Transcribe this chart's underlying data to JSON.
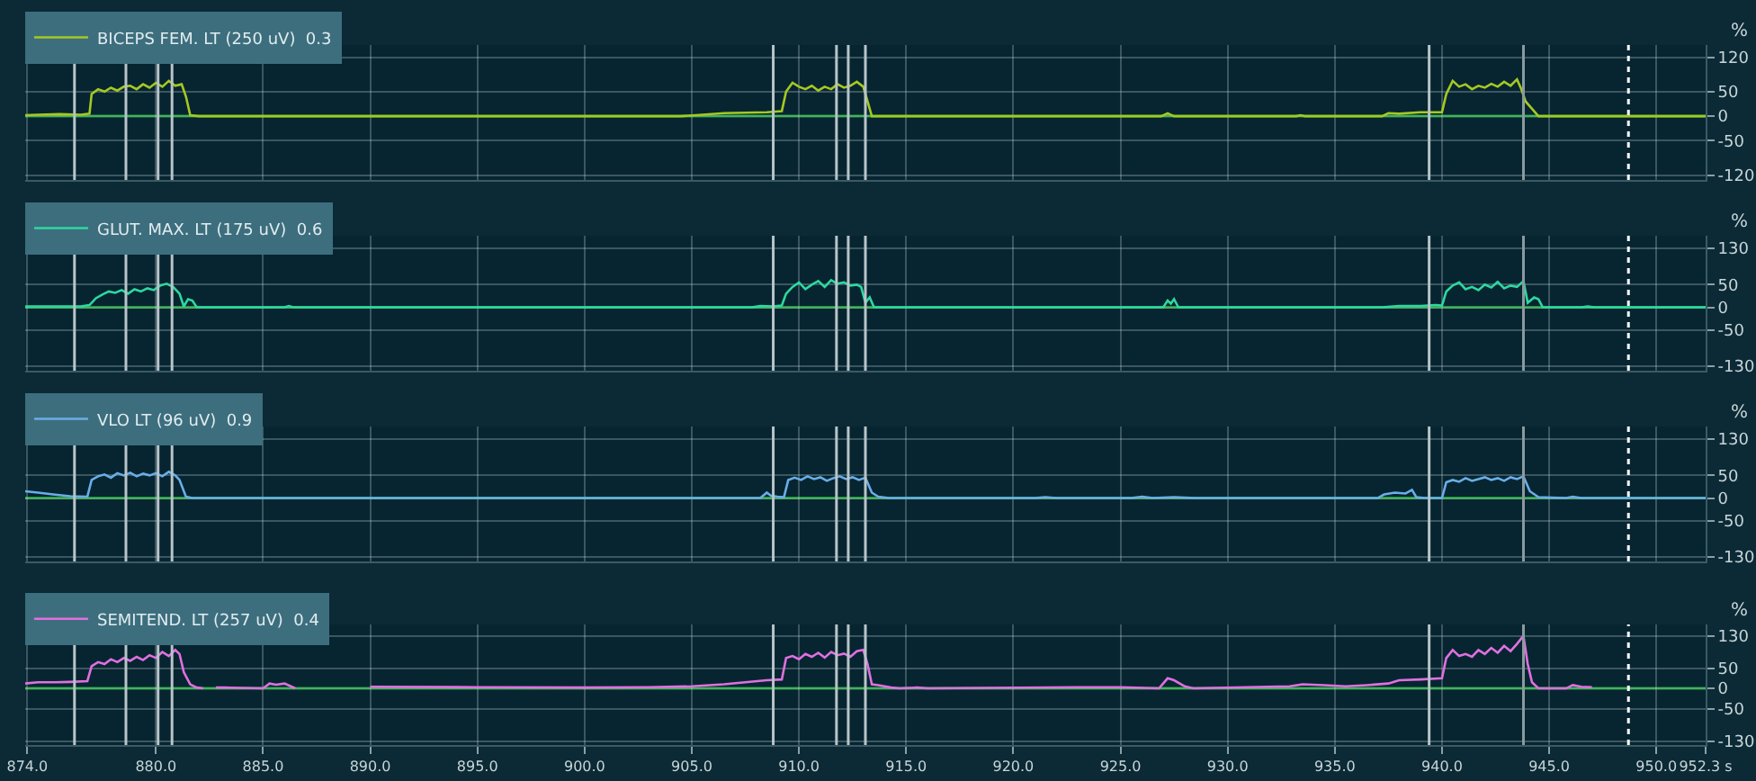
{
  "chart_data": [
    {
      "type": "line",
      "ylabel": "%",
      "xlim": [
        873.9,
        952.3
      ],
      "ylim": [
        -130,
        145
      ],
      "yticks": [
        120,
        50,
        0,
        -50,
        -120
      ],
      "xticks": [
        874,
        880,
        885,
        890,
        895,
        900,
        905,
        910,
        915,
        920,
        925,
        930,
        935,
        940,
        945,
        950,
        952.3
      ],
      "tick_labels": "y",
      "grid": true,
      "legend": "top left",
      "marker": "none",
      "line_style": "solid",
      "series": [
        {
          "name": "BICEPS FEM. LT (250 uV)  0.3",
          "color": "#a6c822",
          "x": [
            873.9,
            874.5,
            875.5,
            876.5,
            876.9,
            877.0,
            877.3,
            877.6,
            877.9,
            878.2,
            878.5,
            878.8,
            879.1,
            879.4,
            879.7,
            880.0,
            880.3,
            880.6,
            880.9,
            881.2,
            881.4,
            881.6,
            882,
            890,
            900,
            904.5,
            905.5,
            906.5,
            907.5,
            908.5,
            909.2,
            909.4,
            909.7,
            910.0,
            910.3,
            910.6,
            910.9,
            911.2,
            911.5,
            911.8,
            912.1,
            912.4,
            912.7,
            913.0,
            913.2,
            913.4,
            920,
            926.9,
            927.2,
            927.5,
            933.2,
            933.4,
            933.6,
            937.2,
            937.5,
            938,
            939,
            940.0,
            940.2,
            940.5,
            940.8,
            941.1,
            941.4,
            941.7,
            942.0,
            942.3,
            942.6,
            942.9,
            943.2,
            943.5,
            943.7,
            943.9,
            944.2,
            944.5,
            952.3
          ],
          "values": [
            2,
            3,
            4,
            3,
            5,
            45,
            55,
            50,
            58,
            52,
            60,
            62,
            55,
            65,
            58,
            68,
            60,
            72,
            62,
            65,
            40,
            2,
            0,
            0,
            0,
            0,
            3,
            6,
            7,
            8,
            10,
            50,
            68,
            60,
            55,
            62,
            52,
            60,
            55,
            65,
            58,
            62,
            70,
            60,
            30,
            0,
            0,
            0,
            6,
            0,
            0,
            2,
            0,
            0,
            6,
            5,
            8,
            8,
            45,
            72,
            60,
            65,
            55,
            62,
            58,
            66,
            60,
            70,
            62,
            75,
            55,
            30,
            15,
            0,
            0
          ]
        }
      ],
      "ref_lines": [
        {
          "axis": "y",
          "value": 0,
          "color": "#1f9a3a"
        },
        {
          "axis": "x",
          "value": 876.2,
          "color": "#b8c4c8"
        },
        {
          "axis": "x",
          "value": 878.6,
          "color": "#b8c4c8"
        },
        {
          "axis": "x",
          "value": 880.1,
          "color": "#b8c4c8"
        },
        {
          "axis": "x",
          "value": 880.75,
          "color": "#b8c4c8"
        },
        {
          "axis": "x",
          "value": 908.8,
          "color": "#b8c4c8"
        },
        {
          "axis": "x",
          "value": 911.75,
          "color": "#b8c4c8"
        },
        {
          "axis": "x",
          "value": 912.3,
          "color": "#b8c4c8"
        },
        {
          "axis": "x",
          "value": 913.1,
          "color": "#b8c4c8"
        },
        {
          "axis": "x",
          "value": 939.4,
          "color": "#b8c4c8"
        },
        {
          "axis": "x",
          "value": 943.8,
          "color": "#8a9a9e"
        },
        {
          "axis": "x",
          "value": 948.7,
          "color": "#ffffff",
          "line_style": "dotted"
        }
      ]
    },
    {
      "type": "line",
      "ylabel": "%",
      "xlim": [
        873.9,
        952.3
      ],
      "ylim": [
        -140,
        158
      ],
      "yticks": [
        130,
        50,
        0,
        -50,
        -130
      ],
      "xticks": [
        874,
        880,
        885,
        890,
        895,
        900,
        905,
        910,
        915,
        920,
        925,
        930,
        935,
        940,
        945,
        950,
        952.3
      ],
      "tick_labels": "y",
      "grid": true,
      "legend": "top left",
      "marker": "none",
      "line_style": "solid",
      "series": [
        {
          "name": "GLUT. MAX. LT (175 uV)  0.6",
          "color": "#2ed8a0",
          "x": [
            873.9,
            875,
            876.5,
            876.9,
            877.2,
            877.5,
            877.8,
            878.1,
            878.4,
            878.7,
            879.0,
            879.3,
            879.6,
            879.9,
            880.2,
            880.5,
            880.8,
            881.1,
            881.3,
            881.5,
            881.7,
            881.9,
            882.1,
            886.0,
            886.2,
            886.4,
            890,
            900,
            907.8,
            908.2,
            908.8,
            909.2,
            909.4,
            909.7,
            910.0,
            910.3,
            910.6,
            910.9,
            911.2,
            911.5,
            911.8,
            912.1,
            912.4,
            912.7,
            912.9,
            913.1,
            913.3,
            913.5,
            920,
            927.0,
            927.2,
            927.35,
            927.5,
            927.7,
            935,
            937.2,
            938,
            939,
            939.7,
            940.0,
            940.2,
            940.5,
            940.8,
            941.1,
            941.4,
            941.7,
            942.0,
            942.3,
            942.6,
            942.9,
            943.2,
            943.5,
            943.8,
            944.0,
            944.3,
            944.5,
            944.7,
            946.5,
            946.8,
            947.1,
            952.3
          ],
          "values": [
            2,
            2,
            2,
            5,
            20,
            28,
            35,
            32,
            38,
            30,
            40,
            35,
            42,
            38,
            48,
            52,
            45,
            30,
            2,
            18,
            15,
            0,
            0,
            0,
            3,
            0,
            0,
            0,
            0,
            3,
            2,
            4,
            30,
            45,
            55,
            40,
            50,
            58,
            45,
            60,
            52,
            55,
            48,
            50,
            45,
            10,
            22,
            0,
            0,
            0,
            15,
            8,
            18,
            0,
            0,
            0,
            3,
            3,
            5,
            4,
            35,
            48,
            55,
            40,
            45,
            38,
            50,
            44,
            56,
            42,
            48,
            45,
            58,
            10,
            22,
            18,
            0,
            0,
            2,
            0,
            0
          ]
        }
      ],
      "ref_lines": [
        {
          "axis": "y",
          "value": 0,
          "color": "#1f9a3a"
        },
        {
          "axis": "x",
          "value": 876.2,
          "color": "#b8c4c8"
        },
        {
          "axis": "x",
          "value": 878.6,
          "color": "#b8c4c8"
        },
        {
          "axis": "x",
          "value": 880.1,
          "color": "#b8c4c8"
        },
        {
          "axis": "x",
          "value": 880.75,
          "color": "#b8c4c8"
        },
        {
          "axis": "x",
          "value": 908.8,
          "color": "#b8c4c8"
        },
        {
          "axis": "x",
          "value": 911.75,
          "color": "#b8c4c8"
        },
        {
          "axis": "x",
          "value": 912.3,
          "color": "#b8c4c8"
        },
        {
          "axis": "x",
          "value": 913.1,
          "color": "#b8c4c8"
        },
        {
          "axis": "x",
          "value": 939.4,
          "color": "#b8c4c8"
        },
        {
          "axis": "x",
          "value": 943.8,
          "color": "#8a9a9e"
        },
        {
          "axis": "x",
          "value": 948.7,
          "color": "#ffffff",
          "line_style": "dotted"
        }
      ]
    },
    {
      "type": "line",
      "ylabel": "%",
      "xlim": [
        873.9,
        952.3
      ],
      "ylim": [
        -140,
        158
      ],
      "yticks": [
        130,
        50,
        0,
        -50,
        -130
      ],
      "xticks": [
        874,
        880,
        885,
        890,
        895,
        900,
        905,
        910,
        915,
        920,
        925,
        930,
        935,
        940,
        945,
        950,
        952.3
      ],
      "tick_labels": "y",
      "grid": true,
      "legend": "top left",
      "marker": "none",
      "line_style": "solid",
      "series": [
        {
          "name": "VLO LT (96 uV)  0.9",
          "color": "#6aaee8",
          "x": [
            873.9,
            874.5,
            875.2,
            876.0,
            876.8,
            877.0,
            877.3,
            877.6,
            877.9,
            878.2,
            878.5,
            878.8,
            879.1,
            879.4,
            879.7,
            880.0,
            880.3,
            880.6,
            880.9,
            881.1,
            881.4,
            881.7,
            885,
            890,
            900,
            905,
            908.2,
            908.5,
            908.7,
            909.0,
            909.3,
            909.5,
            909.8,
            910.1,
            910.4,
            910.7,
            911.0,
            911.3,
            911.6,
            911.9,
            912.2,
            912.5,
            912.8,
            913.1,
            913.4,
            913.7,
            914.2,
            918,
            921.0,
            921.5,
            922,
            925.5,
            926,
            926.5,
            927.5,
            928.5,
            929,
            934,
            937.0,
            937.3,
            937.8,
            938.3,
            938.6,
            938.8,
            939.2,
            940.0,
            940.2,
            940.5,
            940.8,
            941.1,
            941.4,
            941.7,
            942.0,
            942.3,
            942.6,
            942.9,
            943.2,
            943.5,
            943.8,
            944.1,
            944.5,
            945.8,
            946.1,
            946.5,
            952.3
          ],
          "values": [
            15,
            12,
            8,
            4,
            3,
            40,
            48,
            52,
            45,
            55,
            50,
            56,
            48,
            54,
            50,
            55,
            48,
            58,
            50,
            40,
            3,
            0,
            0,
            0,
            0,
            0,
            0,
            12,
            5,
            3,
            2,
            40,
            45,
            40,
            48,
            42,
            46,
            38,
            44,
            48,
            42,
            46,
            40,
            45,
            12,
            3,
            0,
            0,
            0,
            2,
            0,
            0,
            3,
            0,
            2,
            0,
            0,
            0,
            0,
            8,
            12,
            10,
            18,
            2,
            0,
            0,
            35,
            40,
            36,
            44,
            38,
            42,
            46,
            40,
            44,
            38,
            46,
            42,
            48,
            15,
            2,
            0,
            3,
            0,
            0
          ]
        }
      ],
      "ref_lines": [
        {
          "axis": "y",
          "value": 0,
          "color": "#1f9a3a"
        },
        {
          "axis": "x",
          "value": 876.2,
          "color": "#b8c4c8"
        },
        {
          "axis": "x",
          "value": 878.6,
          "color": "#b8c4c8"
        },
        {
          "axis": "x",
          "value": 880.1,
          "color": "#b8c4c8"
        },
        {
          "axis": "x",
          "value": 880.75,
          "color": "#b8c4c8"
        },
        {
          "axis": "x",
          "value": 908.8,
          "color": "#b8c4c8"
        },
        {
          "axis": "x",
          "value": 911.75,
          "color": "#b8c4c8"
        },
        {
          "axis": "x",
          "value": 912.3,
          "color": "#b8c4c8"
        },
        {
          "axis": "x",
          "value": 913.1,
          "color": "#b8c4c8"
        },
        {
          "axis": "x",
          "value": 939.4,
          "color": "#b8c4c8"
        },
        {
          "axis": "x",
          "value": 943.8,
          "color": "#8a9a9e"
        },
        {
          "axis": "x",
          "value": 948.7,
          "color": "#ffffff",
          "line_style": "dotted"
        }
      ]
    },
    {
      "type": "line",
      "ylabel": "%",
      "xlim": [
        873.9,
        952.3
      ],
      "ylim": [
        -140,
        158
      ],
      "yticks": [
        130,
        50,
        0,
        -50,
        -130
      ],
      "xticks": [
        {
          "value": 874,
          "label": "874.0"
        },
        {
          "value": 880,
          "label": "880.0"
        },
        {
          "value": 885,
          "label": "885.0"
        },
        {
          "value": 890,
          "label": "890.0"
        },
        {
          "value": 895,
          "label": "895.0"
        },
        {
          "value": 900,
          "label": "900.0"
        },
        {
          "value": 905,
          "label": "905.0"
        },
        {
          "value": 910,
          "label": "910.0"
        },
        {
          "value": 915,
          "label": "915.0"
        },
        {
          "value": 920,
          "label": "920.0"
        },
        {
          "value": 925,
          "label": "925.0"
        },
        {
          "value": 930,
          "label": "930.0"
        },
        {
          "value": 935,
          "label": "935.0"
        },
        {
          "value": 940,
          "label": "940.0"
        },
        {
          "value": 945,
          "label": "945.0"
        },
        {
          "value": 950,
          "label": "950.0"
        },
        {
          "value": 952.3,
          "label": "952.3 s"
        }
      ],
      "grid": true,
      "legend": "top left",
      "marker": "none",
      "line_style": "solid",
      "series": [
        {
          "name": "SEMITEND. LT (257 uV)  0.4",
          "color": "#e070e0",
          "x": [
            873.9,
            874.5,
            875.3,
            876.0,
            876.8,
            877.0,
            877.3,
            877.6,
            877.9,
            878.2,
            878.5,
            878.8,
            879.1,
            879.4,
            879.7,
            880.0,
            880.3,
            880.6,
            880.9,
            881.1,
            881.3,
            881.6,
            881.9,
            882.2,
            882.5,
            882.8,
            883.2,
            885.0,
            885.3,
            885.6,
            886.0,
            886.5,
            887.5,
            890,
            895,
            900,
            903,
            905,
            906.5,
            907.5,
            908.5,
            909.2,
            909.4,
            909.7,
            910.0,
            910.3,
            910.6,
            910.9,
            911.2,
            911.5,
            911.8,
            912.1,
            912.4,
            912.7,
            913.0,
            913.2,
            913.4,
            913.7,
            914.3,
            914.7,
            915.5,
            916.0,
            923.0,
            925.0,
            926.8,
            927.2,
            927.5,
            928.0,
            928.4,
            932.9,
            933.5,
            934.5,
            935.5,
            936.5,
            937.5,
            938.0,
            939.0,
            940.0,
            940.2,
            940.5,
            940.8,
            941.1,
            941.4,
            941.7,
            942.0,
            942.3,
            942.6,
            942.9,
            943.2,
            943.5,
            943.8,
            944.0,
            944.2,
            944.5,
            945.8,
            946.1,
            946.5,
            947.0
          ],
          "values": [
            12,
            15,
            15,
            16,
            18,
            55,
            65,
            60,
            72,
            65,
            75,
            68,
            78,
            70,
            82,
            75,
            90,
            80,
            95,
            85,
            40,
            10,
            2,
            0,
            null,
            2,
            2,
            0,
            12,
            9,
            12,
            0,
            null,
            4,
            3,
            2,
            3,
            5,
            10,
            15,
            20,
            22,
            75,
            80,
            72,
            85,
            78,
            88,
            76,
            90,
            82,
            86,
            78,
            92,
            95,
            60,
            10,
            8,
            2,
            0,
            2,
            0,
            3,
            3,
            0,
            25,
            20,
            5,
            0,
            5,
            10,
            8,
            5,
            8,
            12,
            20,
            22,
            25,
            75,
            95,
            80,
            85,
            78,
            95,
            85,
            100,
            88,
            105,
            92,
            110,
            130,
            60,
            15,
            0,
            0,
            8,
            4,
            3
          ]
        }
      ],
      "ref_lines": [
        {
          "axis": "y",
          "value": 0,
          "color": "#1f9a3a"
        },
        {
          "axis": "x",
          "value": 876.2,
          "color": "#b8c4c8"
        },
        {
          "axis": "x",
          "value": 878.6,
          "color": "#b8c4c8"
        },
        {
          "axis": "x",
          "value": 880.1,
          "color": "#b8c4c8"
        },
        {
          "axis": "x",
          "value": 880.75,
          "color": "#b8c4c8"
        },
        {
          "axis": "x",
          "value": 908.8,
          "color": "#b8c4c8"
        },
        {
          "axis": "x",
          "value": 911.75,
          "color": "#b8c4c8"
        },
        {
          "axis": "x",
          "value": 912.3,
          "color": "#b8c4c8"
        },
        {
          "axis": "x",
          "value": 913.1,
          "color": "#b8c4c8"
        },
        {
          "axis": "x",
          "value": 939.4,
          "color": "#b8c4c8"
        },
        {
          "axis": "x",
          "value": 943.8,
          "color": "#8a9a9e"
        },
        {
          "axis": "x",
          "value": 948.7,
          "color": "#ffffff",
          "line_style": "dotted"
        }
      ]
    }
  ]
}
